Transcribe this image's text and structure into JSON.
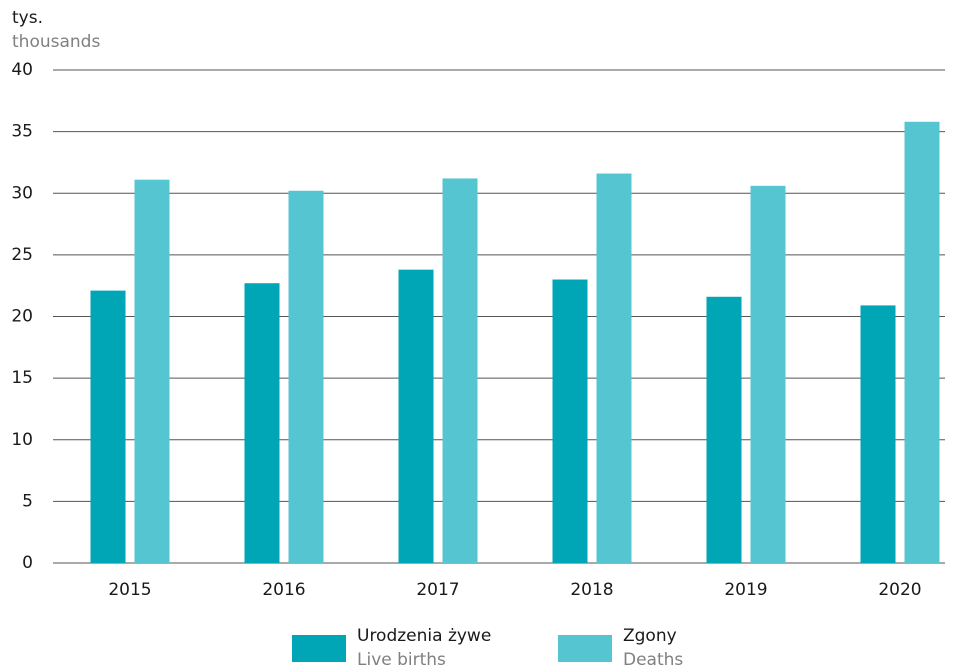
{
  "chart_data": {
    "type": "bar",
    "y_label": "tys.",
    "y_label_en": "thousands",
    "categories": [
      "2015",
      "2016",
      "2017",
      "2018",
      "2019",
      "2020"
    ],
    "series": [
      {
        "name": "Urodzenia żywe",
        "name_en": "Live births",
        "color": "#00a6b6",
        "values": [
          22.1,
          22.7,
          23.8,
          23.0,
          21.6,
          20.9
        ]
      },
      {
        "name": "Zgony",
        "name_en": "Deaths",
        "color": "#55c5d1",
        "values": [
          31.1,
          30.2,
          31.2,
          31.6,
          30.6,
          35.8
        ]
      }
    ],
    "ylim": [
      0,
      40
    ],
    "yticks": [
      0,
      5,
      10,
      15,
      20,
      25,
      30,
      35,
      40
    ],
    "grid": true
  }
}
